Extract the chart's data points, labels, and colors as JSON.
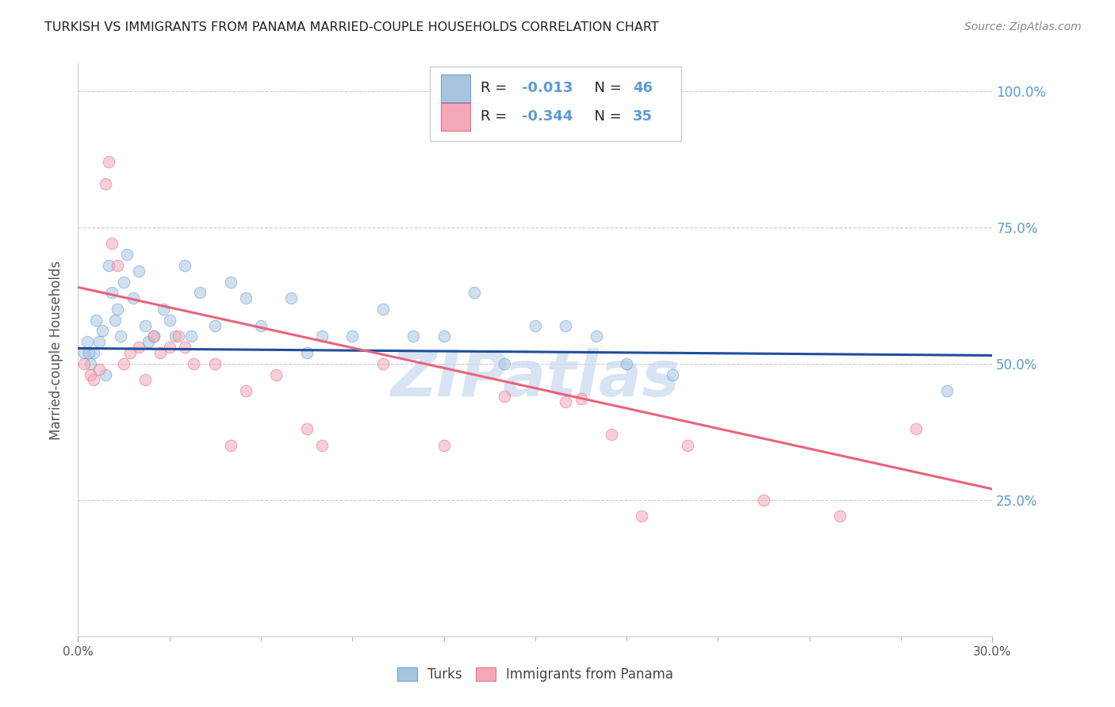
{
  "title": "TURKISH VS IMMIGRANTS FROM PANAMA MARRIED-COUPLE HOUSEHOLDS CORRELATION CHART",
  "source": "Source: ZipAtlas.com",
  "ylabel": "Married-couple Households",
  "xlim": [
    0.0,
    30.0
  ],
  "ylim": [
    0.0,
    105.0
  ],
  "ytick_labels": [
    "100.0%",
    "75.0%",
    "50.0%",
    "25.0%"
  ],
  "ytick_values": [
    100.0,
    75.0,
    50.0,
    25.0
  ],
  "background_color": "#ffffff",
  "grid_color": "#cccccc",
  "title_color": "#222222",
  "right_axis_color": "#5b9bd5",
  "turks_color": "#aac4e0",
  "panama_color": "#f4a7b9",
  "turks_edge_color": "#5b9bd5",
  "panama_edge_color": "#e8637d",
  "turks_line_color": "#1f4e9c",
  "panama_line_color": "#e8637d",
  "legend_r_color": "#e05c7a",
  "legend_n_color": "#5b9bd5",
  "legend_label_color": "#222222",
  "turks_scatter_x": [
    0.2,
    0.3,
    0.4,
    0.5,
    0.6,
    0.7,
    0.8,
    0.9,
    1.0,
    1.1,
    1.2,
    1.3,
    1.4,
    1.5,
    1.6,
    1.8,
    2.0,
    2.2,
    2.3,
    2.5,
    2.8,
    3.0,
    3.2,
    3.5,
    3.7,
    4.0,
    4.5,
    5.0,
    5.5,
    6.0,
    7.0,
    7.5,
    8.0,
    9.0,
    10.0,
    11.0,
    12.0,
    13.0,
    14.0,
    15.0,
    16.0,
    17.0,
    18.0,
    19.5,
    28.5,
    0.35
  ],
  "turks_scatter_y": [
    52.0,
    54.0,
    50.0,
    52.0,
    58.0,
    54.0,
    56.0,
    48.0,
    68.0,
    63.0,
    58.0,
    60.0,
    55.0,
    65.0,
    70.0,
    62.0,
    67.0,
    57.0,
    54.0,
    55.0,
    60.0,
    58.0,
    55.0,
    68.0,
    55.0,
    63.0,
    57.0,
    65.0,
    62.0,
    57.0,
    62.0,
    52.0,
    55.0,
    55.0,
    60.0,
    55.0,
    55.0,
    63.0,
    50.0,
    57.0,
    57.0,
    55.0,
    50.0,
    48.0,
    45.0,
    52.0
  ],
  "panama_scatter_x": [
    0.2,
    0.4,
    0.5,
    0.7,
    0.9,
    1.0,
    1.1,
    1.3,
    1.5,
    1.7,
    2.0,
    2.2,
    2.5,
    2.7,
    3.0,
    3.3,
    3.5,
    3.8,
    4.5,
    5.0,
    5.5,
    6.5,
    7.5,
    8.0,
    10.0,
    12.0,
    14.0,
    16.0,
    16.5,
    17.5,
    18.5,
    20.0,
    22.5,
    25.0,
    27.5
  ],
  "panama_scatter_y": [
    50.0,
    48.0,
    47.0,
    49.0,
    83.0,
    87.0,
    72.0,
    68.0,
    50.0,
    52.0,
    53.0,
    47.0,
    55.0,
    52.0,
    53.0,
    55.0,
    53.0,
    50.0,
    50.0,
    35.0,
    45.0,
    48.0,
    38.0,
    35.0,
    50.0,
    35.0,
    44.0,
    43.0,
    43.5,
    37.0,
    22.0,
    35.0,
    25.0,
    22.0,
    38.0
  ],
  "turks_line_x": [
    0.0,
    30.0
  ],
  "turks_line_y": [
    52.8,
    51.5
  ],
  "panama_line_x": [
    0.0,
    30.0
  ],
  "panama_line_y": [
    64.0,
    27.0
  ],
  "marker_size": 110,
  "alpha": 0.55,
  "watermark": "ZIPatlas",
  "watermark_color": "#c8d8ee",
  "bottom_legend_labels": [
    "Turks",
    "Immigrants from Panama"
  ]
}
